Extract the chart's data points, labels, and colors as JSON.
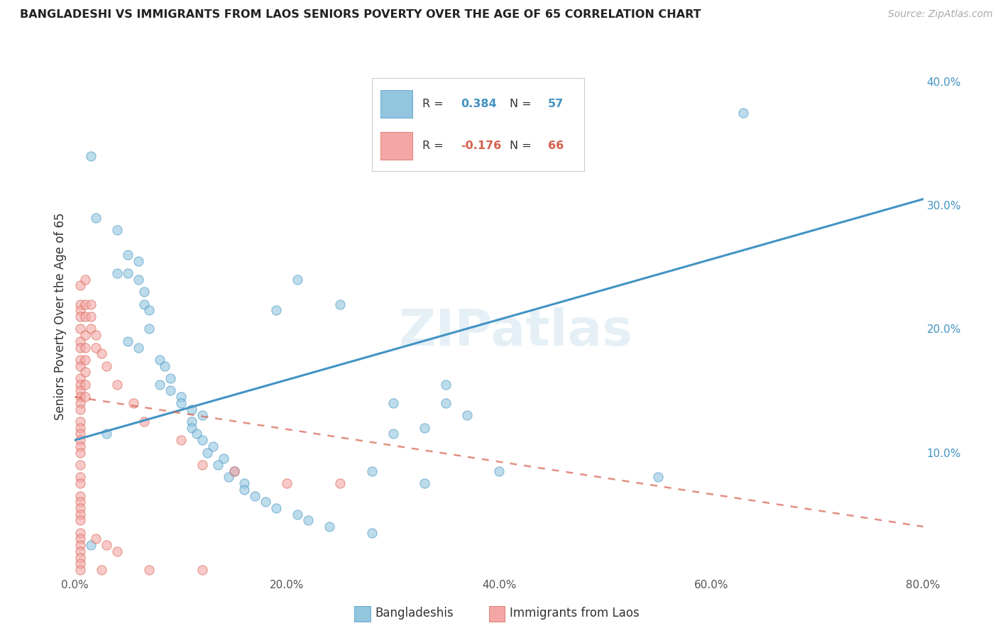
{
  "title": "BANGLADESHI VS IMMIGRANTS FROM LAOS SENIORS POVERTY OVER THE AGE OF 65 CORRELATION CHART",
  "source": "Source: ZipAtlas.com",
  "ylabel": "Seniors Poverty Over the Age of 65",
  "xlim": [
    0.0,
    0.8
  ],
  "ylim": [
    0.0,
    0.42
  ],
  "xtick_positions": [
    0.0,
    0.1,
    0.2,
    0.3,
    0.4,
    0.5,
    0.6,
    0.7,
    0.8
  ],
  "xticklabels": [
    "0.0%",
    "",
    "20.0%",
    "",
    "40.0%",
    "",
    "60.0%",
    "",
    "80.0%"
  ],
  "yticks_right": [
    0.1,
    0.2,
    0.3,
    0.4
  ],
  "yticklabels_right": [
    "10.0%",
    "20.0%",
    "30.0%",
    "40.0%"
  ],
  "grid_color": "#cccccc",
  "background_color": "#ffffff",
  "blue_color": "#92c5de",
  "pink_color": "#f4a6a6",
  "blue_line_color": "#4393c3",
  "pink_line_color": "#d6604d",
  "watermark": "ZIPatlas",
  "bangladeshi_scatter": [
    [
      0.015,
      0.34
    ],
    [
      0.02,
      0.29
    ],
    [
      0.04,
      0.28
    ],
    [
      0.05,
      0.26
    ],
    [
      0.04,
      0.245
    ],
    [
      0.05,
      0.245
    ],
    [
      0.06,
      0.255
    ],
    [
      0.06,
      0.24
    ],
    [
      0.065,
      0.23
    ],
    [
      0.065,
      0.22
    ],
    [
      0.07,
      0.215
    ],
    [
      0.07,
      0.2
    ],
    [
      0.05,
      0.19
    ],
    [
      0.06,
      0.185
    ],
    [
      0.08,
      0.175
    ],
    [
      0.085,
      0.17
    ],
    [
      0.09,
      0.16
    ],
    [
      0.08,
      0.155
    ],
    [
      0.09,
      0.15
    ],
    [
      0.1,
      0.145
    ],
    [
      0.1,
      0.14
    ],
    [
      0.11,
      0.135
    ],
    [
      0.12,
      0.13
    ],
    [
      0.11,
      0.125
    ],
    [
      0.11,
      0.12
    ],
    [
      0.115,
      0.115
    ],
    [
      0.12,
      0.11
    ],
    [
      0.13,
      0.105
    ],
    [
      0.125,
      0.1
    ],
    [
      0.14,
      0.095
    ],
    [
      0.135,
      0.09
    ],
    [
      0.15,
      0.085
    ],
    [
      0.145,
      0.08
    ],
    [
      0.16,
      0.075
    ],
    [
      0.16,
      0.07
    ],
    [
      0.17,
      0.065
    ],
    [
      0.18,
      0.06
    ],
    [
      0.19,
      0.055
    ],
    [
      0.21,
      0.05
    ],
    [
      0.22,
      0.045
    ],
    [
      0.24,
      0.04
    ],
    [
      0.28,
      0.035
    ],
    [
      0.19,
      0.215
    ],
    [
      0.21,
      0.24
    ],
    [
      0.25,
      0.22
    ],
    [
      0.35,
      0.155
    ],
    [
      0.35,
      0.14
    ],
    [
      0.37,
      0.13
    ],
    [
      0.3,
      0.14
    ],
    [
      0.33,
      0.12
    ],
    [
      0.3,
      0.115
    ],
    [
      0.33,
      0.075
    ],
    [
      0.28,
      0.085
    ],
    [
      0.4,
      0.085
    ],
    [
      0.63,
      0.375
    ],
    [
      0.03,
      0.115
    ],
    [
      0.015,
      0.025
    ],
    [
      0.55,
      0.08
    ]
  ],
  "laos_scatter": [
    [
      0.005,
      0.235
    ],
    [
      0.005,
      0.22
    ],
    [
      0.005,
      0.215
    ],
    [
      0.005,
      0.21
    ],
    [
      0.005,
      0.2
    ],
    [
      0.005,
      0.19
    ],
    [
      0.005,
      0.185
    ],
    [
      0.005,
      0.175
    ],
    [
      0.005,
      0.17
    ],
    [
      0.005,
      0.16
    ],
    [
      0.005,
      0.155
    ],
    [
      0.005,
      0.15
    ],
    [
      0.005,
      0.145
    ],
    [
      0.005,
      0.14
    ],
    [
      0.005,
      0.135
    ],
    [
      0.005,
      0.125
    ],
    [
      0.005,
      0.12
    ],
    [
      0.005,
      0.115
    ],
    [
      0.005,
      0.11
    ],
    [
      0.005,
      0.105
    ],
    [
      0.005,
      0.1
    ],
    [
      0.005,
      0.09
    ],
    [
      0.005,
      0.08
    ],
    [
      0.005,
      0.075
    ],
    [
      0.005,
      0.065
    ],
    [
      0.005,
      0.06
    ],
    [
      0.005,
      0.055
    ],
    [
      0.005,
      0.05
    ],
    [
      0.005,
      0.045
    ],
    [
      0.005,
      0.035
    ],
    [
      0.005,
      0.03
    ],
    [
      0.005,
      0.025
    ],
    [
      0.005,
      0.02
    ],
    [
      0.01,
      0.24
    ],
    [
      0.01,
      0.22
    ],
    [
      0.01,
      0.21
    ],
    [
      0.01,
      0.195
    ],
    [
      0.01,
      0.185
    ],
    [
      0.01,
      0.175
    ],
    [
      0.01,
      0.165
    ],
    [
      0.01,
      0.155
    ],
    [
      0.01,
      0.145
    ],
    [
      0.015,
      0.22
    ],
    [
      0.015,
      0.21
    ],
    [
      0.015,
      0.2
    ],
    [
      0.02,
      0.195
    ],
    [
      0.02,
      0.185
    ],
    [
      0.025,
      0.18
    ],
    [
      0.03,
      0.17
    ],
    [
      0.04,
      0.155
    ],
    [
      0.055,
      0.14
    ],
    [
      0.065,
      0.125
    ],
    [
      0.1,
      0.11
    ],
    [
      0.12,
      0.09
    ],
    [
      0.15,
      0.085
    ],
    [
      0.2,
      0.075
    ],
    [
      0.25,
      0.075
    ],
    [
      0.005,
      0.015
    ],
    [
      0.005,
      0.01
    ],
    [
      0.005,
      0.005
    ],
    [
      0.025,
      0.005
    ],
    [
      0.07,
      0.005
    ],
    [
      0.12,
      0.005
    ],
    [
      0.02,
      0.03
    ],
    [
      0.03,
      0.025
    ],
    [
      0.04,
      0.02
    ]
  ],
  "blue_trend_x": [
    0.0,
    0.8
  ],
  "blue_trend_y": [
    0.11,
    0.305
  ],
  "pink_trend_x": [
    0.0,
    0.8
  ],
  "pink_trend_y": [
    0.145,
    0.04
  ]
}
